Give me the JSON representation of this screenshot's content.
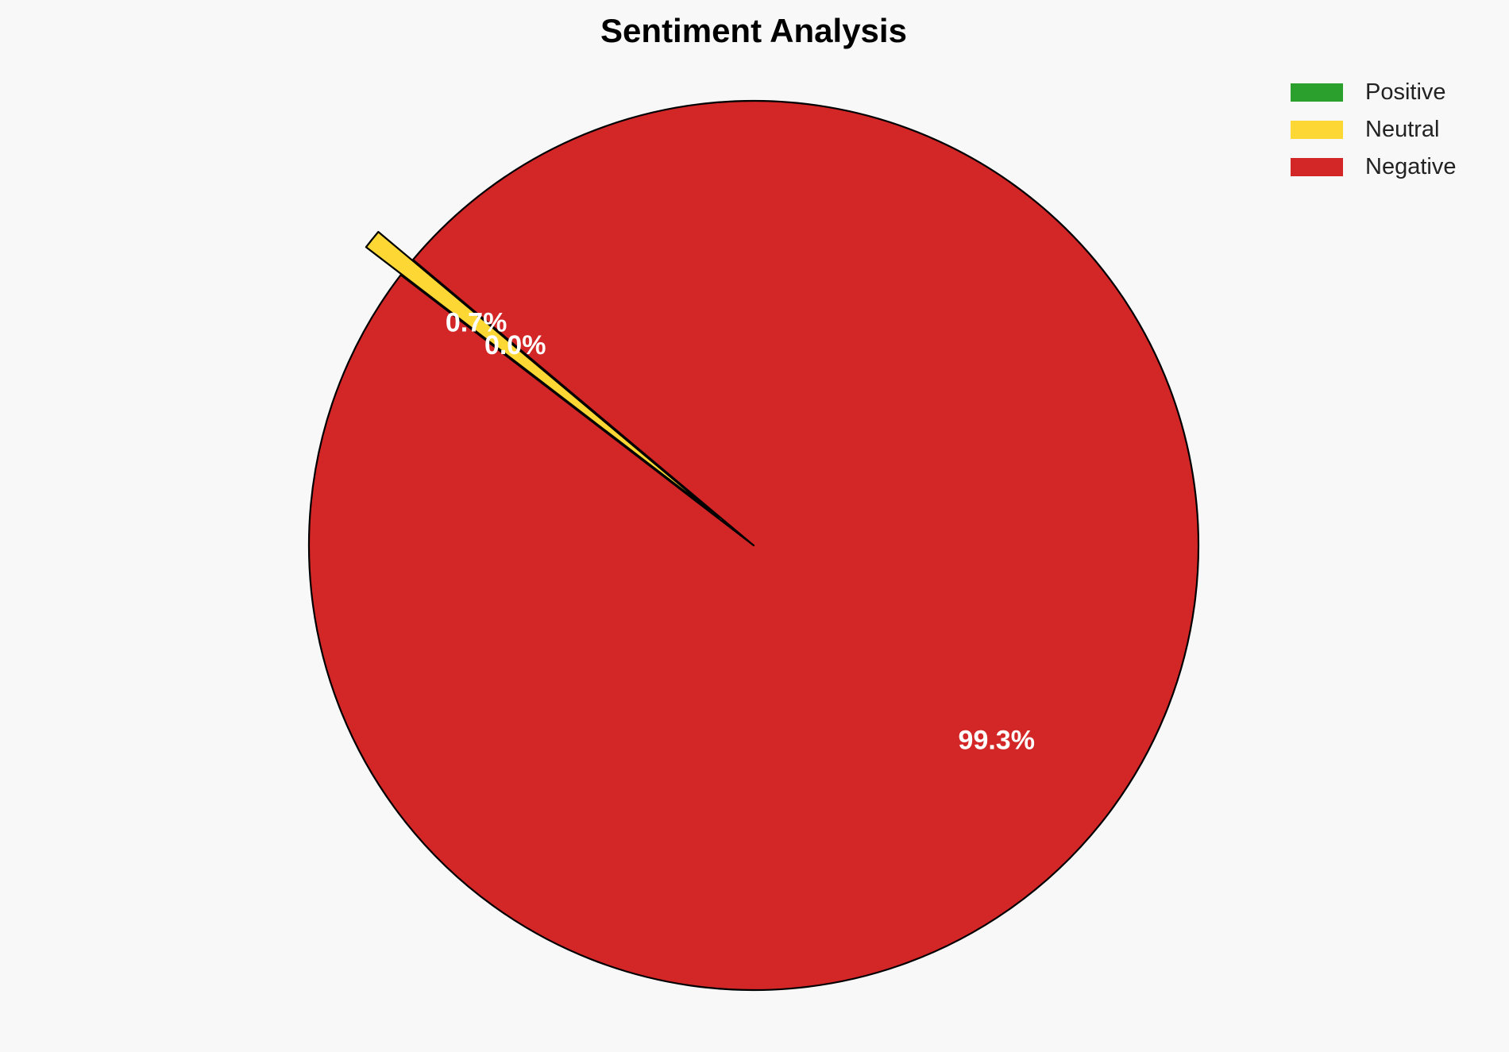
{
  "chart_data": {
    "type": "pie",
    "title": "Sentiment Analysis",
    "categories": [
      "Positive",
      "Neutral",
      "Negative"
    ],
    "values": [
      0.0,
      0.7,
      99.3
    ],
    "labels": [
      "0.0%",
      "0.7%",
      "99.3%"
    ],
    "colors": [
      "#2ca02c",
      "#fdd835",
      "#d32626"
    ],
    "explode": [
      0,
      0.1,
      0
    ],
    "start_angle_deg": 140,
    "direction": "counterclockwise",
    "legend_position": "top-right",
    "edge_color": "#000000",
    "label_color": "#ffffff",
    "background": "#f8f8f8"
  }
}
